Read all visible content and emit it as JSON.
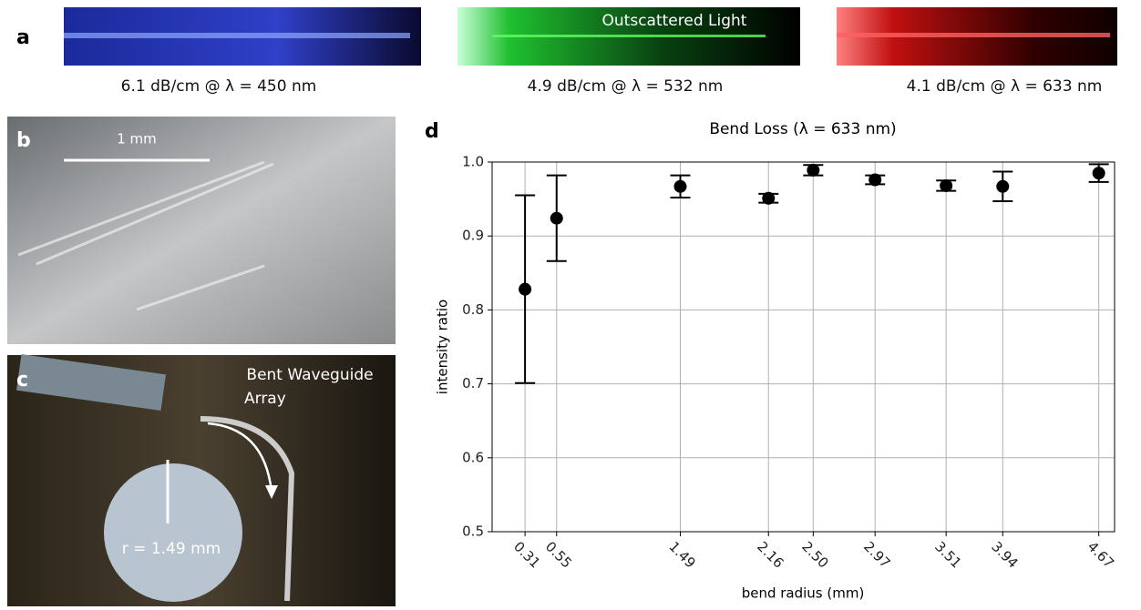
{
  "panels": {
    "a": {
      "label": "a",
      "captions": [
        "6.1 dB/cm @ λ = 450 nm",
        "4.9 dB/cm @ λ = 532 nm",
        "4.1 dB/cm @ λ = 633 nm"
      ],
      "annotation": "Outscattered Light"
    },
    "b": {
      "label": "b",
      "scale": "1 mm"
    },
    "c": {
      "label": "c",
      "annotation": [
        "Bent Waveguide",
        "Array"
      ],
      "radius": "r = 1.49 mm"
    },
    "d": {
      "label": "d"
    }
  },
  "chart_data": {
    "type": "errorbar",
    "title": "Bend Loss (λ = 633 nm)",
    "xlabel": "bend radius (mm)",
    "ylabel": "intensity ratio",
    "x": [
      0.31,
      0.55,
      1.49,
      2.16,
      2.5,
      2.97,
      3.51,
      3.94,
      4.67
    ],
    "values": [
      0.828,
      0.924,
      0.967,
      0.951,
      0.989,
      0.976,
      0.968,
      0.967,
      0.985
    ],
    "errors": [
      0.127,
      0.058,
      0.015,
      0.006,
      0.007,
      0.006,
      0.007,
      0.02,
      0.012
    ],
    "color": "#000000",
    "xlim": [
      0.06,
      4.79
    ],
    "xticks": [
      0.31,
      0.55,
      1.49,
      2.16,
      {
        "value": 2.5,
        "label": "2.50"
      },
      2.97,
      3.51,
      3.94,
      4.67
    ],
    "ylim": [
      0.5,
      1.0
    ],
    "yticks": [
      0.5,
      0.6,
      0.7,
      0.8,
      0.9,
      {
        "value": 1.0,
        "label": "1.0"
      }
    ],
    "grid": true
  }
}
